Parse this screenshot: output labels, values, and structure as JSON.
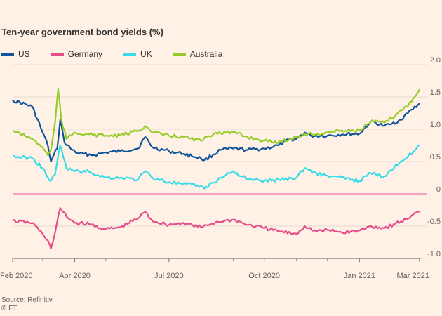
{
  "title": "Ten-year government bond yields (%)",
  "source_line1": "Source: Refinitiv",
  "source_line2": "© FT",
  "chart_data": {
    "type": "line",
    "title": "Ten-year government bond yields (%)",
    "xlabel": "",
    "ylabel": "",
    "ylim": [
      -1.0,
      2.0
    ],
    "yticks": [
      2.0,
      1.5,
      1.0,
      0.5,
      0,
      -0.5,
      -1.0
    ],
    "ytick_labels": [
      "2.0",
      "1.5",
      "1.0",
      "0.5",
      "0",
      "-0.5",
      "-1.0"
    ],
    "xticks": [
      "Feb 2020",
      "Apr 2020",
      "Jul 2020",
      "Oct 2020",
      "Jan 2021",
      "Mar 2021"
    ],
    "xtick_labels": [
      "Feb 2020",
      "Apr 2020",
      "Jul 2020",
      "Oct 2020",
      "Jan 2021",
      "Mar 2021"
    ],
    "xlim": [
      "2020-02-01",
      "2021-02-28"
    ],
    "grid": true,
    "legend_position": "top-left",
    "series": [
      {
        "name": "US",
        "color": "#0f5499",
        "points": [
          [
            "2020-02-01",
            1.45
          ],
          [
            "2020-02-20",
            1.35
          ],
          [
            "2020-03-01",
            0.95
          ],
          [
            "2020-03-06",
            0.75
          ],
          [
            "2020-03-09",
            0.5
          ],
          [
            "2020-03-15",
            0.7
          ],
          [
            "2020-03-18",
            1.15
          ],
          [
            "2020-03-22",
            0.8
          ],
          [
            "2020-03-28",
            0.7
          ],
          [
            "2020-04-05",
            0.62
          ],
          [
            "2020-04-20",
            0.6
          ],
          [
            "2020-05-01",
            0.64
          ],
          [
            "2020-05-15",
            0.66
          ],
          [
            "2020-06-01",
            0.7
          ],
          [
            "2020-06-08",
            0.88
          ],
          [
            "2020-06-15",
            0.72
          ],
          [
            "2020-07-01",
            0.66
          ],
          [
            "2020-07-15",
            0.62
          ],
          [
            "2020-08-01",
            0.55
          ],
          [
            "2020-08-04",
            0.52
          ],
          [
            "2020-08-20",
            0.68
          ],
          [
            "2020-09-01",
            0.7
          ],
          [
            "2020-09-15",
            0.68
          ],
          [
            "2020-10-01",
            0.7
          ],
          [
            "2020-10-15",
            0.75
          ],
          [
            "2020-10-25",
            0.84
          ],
          [
            "2020-11-01",
            0.85
          ],
          [
            "2020-11-09",
            0.95
          ],
          [
            "2020-11-15",
            0.9
          ],
          [
            "2020-12-01",
            0.9
          ],
          [
            "2020-12-15",
            0.92
          ],
          [
            "2021-01-01",
            0.93
          ],
          [
            "2021-01-12",
            1.12
          ],
          [
            "2021-01-25",
            1.05
          ],
          [
            "2021-02-01",
            1.08
          ],
          [
            "2021-02-10",
            1.15
          ],
          [
            "2021-02-20",
            1.3
          ],
          [
            "2021-02-28",
            1.4
          ]
        ]
      },
      {
        "name": "Germany",
        "color": "#e54c8a",
        "points": [
          [
            "2020-02-01",
            -0.42
          ],
          [
            "2020-02-20",
            -0.45
          ],
          [
            "2020-03-01",
            -0.62
          ],
          [
            "2020-03-06",
            -0.72
          ],
          [
            "2020-03-09",
            -0.85
          ],
          [
            "2020-03-13",
            -0.6
          ],
          [
            "2020-03-18",
            -0.22
          ],
          [
            "2020-03-24",
            -0.35
          ],
          [
            "2020-04-01",
            -0.45
          ],
          [
            "2020-04-15",
            -0.47
          ],
          [
            "2020-05-01",
            -0.55
          ],
          [
            "2020-05-15",
            -0.52
          ],
          [
            "2020-06-01",
            -0.38
          ],
          [
            "2020-06-08",
            -0.28
          ],
          [
            "2020-06-15",
            -0.42
          ],
          [
            "2020-07-01",
            -0.48
          ],
          [
            "2020-07-15",
            -0.45
          ],
          [
            "2020-08-01",
            -0.52
          ],
          [
            "2020-08-15",
            -0.44
          ],
          [
            "2020-09-01",
            -0.4
          ],
          [
            "2020-09-15",
            -0.48
          ],
          [
            "2020-10-01",
            -0.53
          ],
          [
            "2020-10-15",
            -0.58
          ],
          [
            "2020-11-01",
            -0.62
          ],
          [
            "2020-11-09",
            -0.5
          ],
          [
            "2020-11-20",
            -0.58
          ],
          [
            "2020-12-01",
            -0.56
          ],
          [
            "2020-12-15",
            -0.6
          ],
          [
            "2021-01-01",
            -0.57
          ],
          [
            "2021-01-12",
            -0.5
          ],
          [
            "2021-01-25",
            -0.53
          ],
          [
            "2021-02-05",
            -0.46
          ],
          [
            "2021-02-15",
            -0.4
          ],
          [
            "2021-02-22",
            -0.32
          ],
          [
            "2021-02-28",
            -0.28
          ]
        ]
      },
      {
        "name": "UK",
        "color": "#34dbe8",
        "points": [
          [
            "2020-02-01",
            0.58
          ],
          [
            "2020-02-20",
            0.55
          ],
          [
            "2020-03-01",
            0.4
          ],
          [
            "2020-03-06",
            0.25
          ],
          [
            "2020-03-09",
            0.2
          ],
          [
            "2020-03-13",
            0.3
          ],
          [
            "2020-03-18",
            0.75
          ],
          [
            "2020-03-24",
            0.4
          ],
          [
            "2020-04-01",
            0.35
          ],
          [
            "2020-04-15",
            0.34
          ],
          [
            "2020-05-01",
            0.25
          ],
          [
            "2020-05-15",
            0.25
          ],
          [
            "2020-06-01",
            0.22
          ],
          [
            "2020-06-08",
            0.35
          ],
          [
            "2020-06-15",
            0.25
          ],
          [
            "2020-07-01",
            0.18
          ],
          [
            "2020-07-15",
            0.15
          ],
          [
            "2020-08-01",
            0.12
          ],
          [
            "2020-08-04",
            0.08
          ],
          [
            "2020-08-20",
            0.25
          ],
          [
            "2020-09-01",
            0.35
          ],
          [
            "2020-09-15",
            0.22
          ],
          [
            "2020-10-01",
            0.2
          ],
          [
            "2020-10-15",
            0.22
          ],
          [
            "2020-11-01",
            0.25
          ],
          [
            "2020-11-09",
            0.4
          ],
          [
            "2020-11-20",
            0.32
          ],
          [
            "2020-12-01",
            0.28
          ],
          [
            "2020-12-15",
            0.25
          ],
          [
            "2021-01-01",
            0.2
          ],
          [
            "2021-01-12",
            0.32
          ],
          [
            "2021-01-25",
            0.27
          ],
          [
            "2021-02-05",
            0.45
          ],
          [
            "2021-02-15",
            0.55
          ],
          [
            "2021-02-22",
            0.65
          ],
          [
            "2021-02-28",
            0.75
          ]
        ]
      },
      {
        "name": "Australia",
        "color": "#96cc28",
        "points": [
          [
            "2020-02-01",
            0.98
          ],
          [
            "2020-02-20",
            0.85
          ],
          [
            "2020-03-01",
            0.72
          ],
          [
            "2020-03-06",
            0.6
          ],
          [
            "2020-03-09",
            0.68
          ],
          [
            "2020-03-13",
            1.1
          ],
          [
            "2020-03-16",
            1.62
          ],
          [
            "2020-03-19",
            1.15
          ],
          [
            "2020-03-24",
            0.85
          ],
          [
            "2020-04-01",
            0.95
          ],
          [
            "2020-04-15",
            0.92
          ],
          [
            "2020-05-01",
            0.9
          ],
          [
            "2020-05-15",
            0.9
          ],
          [
            "2020-06-01",
            0.98
          ],
          [
            "2020-06-08",
            1.05
          ],
          [
            "2020-06-15",
            0.95
          ],
          [
            "2020-07-01",
            0.9
          ],
          [
            "2020-07-15",
            0.88
          ],
          [
            "2020-08-01",
            0.82
          ],
          [
            "2020-08-15",
            0.95
          ],
          [
            "2020-09-01",
            0.95
          ],
          [
            "2020-09-15",
            0.88
          ],
          [
            "2020-10-01",
            0.82
          ],
          [
            "2020-10-15",
            0.8
          ],
          [
            "2020-11-01",
            0.88
          ],
          [
            "2020-11-09",
            0.92
          ],
          [
            "2020-11-20",
            0.92
          ],
          [
            "2020-12-01",
            0.95
          ],
          [
            "2020-12-15",
            0.98
          ],
          [
            "2021-01-01",
            0.98
          ],
          [
            "2021-01-12",
            1.12
          ],
          [
            "2021-01-25",
            1.1
          ],
          [
            "2021-02-05",
            1.22
          ],
          [
            "2021-02-15",
            1.35
          ],
          [
            "2021-02-22",
            1.48
          ],
          [
            "2021-02-28",
            1.62
          ]
        ]
      }
    ]
  }
}
